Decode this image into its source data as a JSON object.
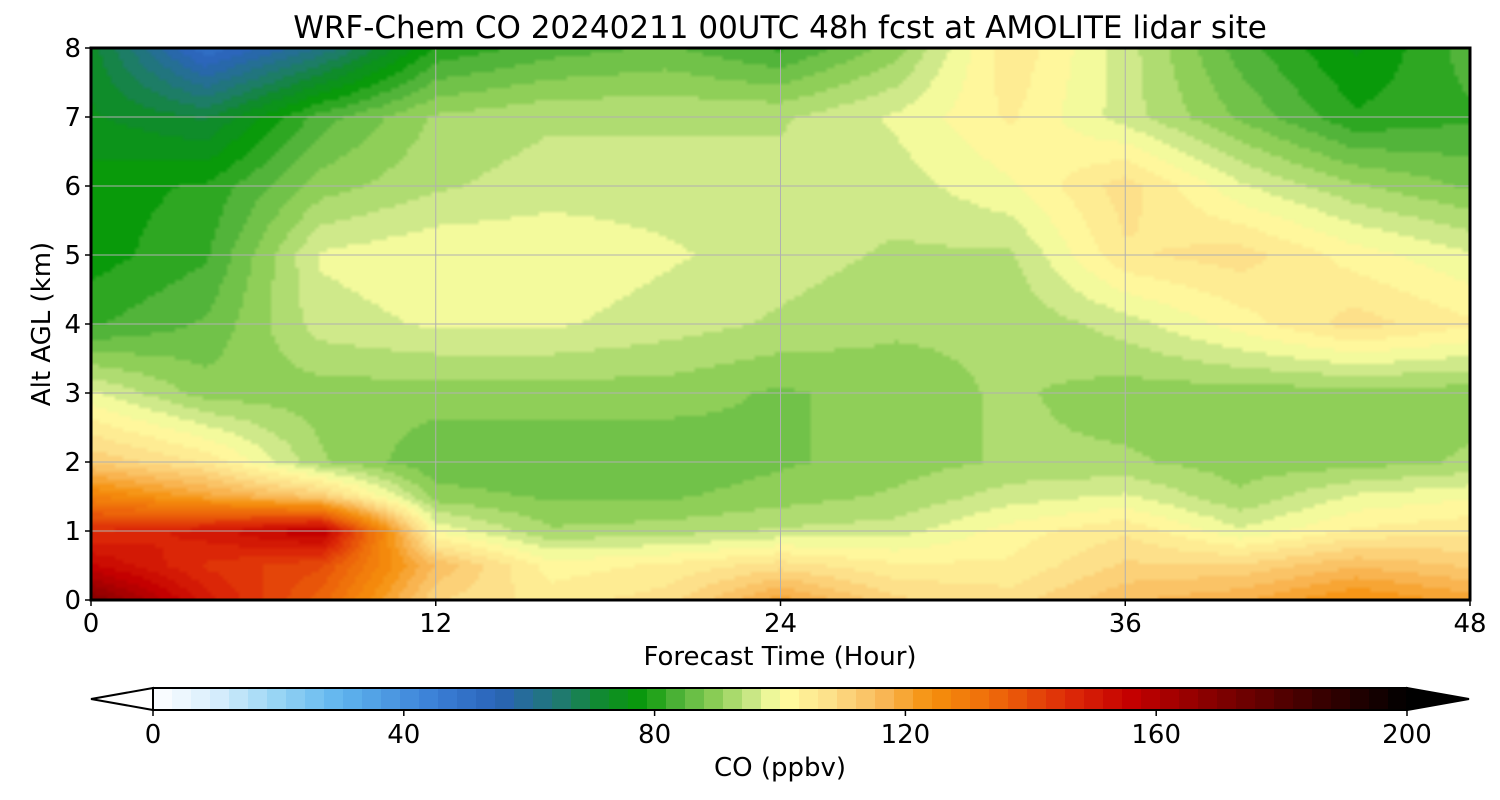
{
  "chart_data": {
    "type": "heatmap",
    "title": "WRF-Chem CO  20240211 00UTC 48h fcst at AMOLITE lidar site",
    "xlabel": "Forecast Time (Hour)",
    "ylabel": "Alt AGL (km)",
    "xlim": [
      0,
      48
    ],
    "ylim": [
      0,
      8
    ],
    "x_ticks": [
      "0",
      "12",
      "24",
      "36",
      "48"
    ],
    "y_ticks": [
      "0",
      "1",
      "2",
      "3",
      "4",
      "5",
      "6",
      "7",
      "8"
    ],
    "grid": true,
    "colorbar": {
      "label": "CO  (ppbv)",
      "range": [
        0,
        200
      ],
      "ticks": [
        "0",
        "40",
        "80",
        "120",
        "160",
        "200"
      ],
      "extend": "both",
      "stops": [
        {
          "value": 0,
          "color": "#ffffff"
        },
        {
          "value": 10,
          "color": "#d8eefc"
        },
        {
          "value": 20,
          "color": "#96d4f4"
        },
        {
          "value": 30,
          "color": "#5fb4ee"
        },
        {
          "value": 45,
          "color": "#3a7fd6"
        },
        {
          "value": 55,
          "color": "#2a63b8"
        },
        {
          "value": 65,
          "color": "#1f7a70"
        },
        {
          "value": 72,
          "color": "#0f8c2a"
        },
        {
          "value": 78,
          "color": "#099a0a"
        },
        {
          "value": 84,
          "color": "#52b43a"
        },
        {
          "value": 90,
          "color": "#8fcf58"
        },
        {
          "value": 96,
          "color": "#cfe98a"
        },
        {
          "value": 100,
          "color": "#ffffa2"
        },
        {
          "value": 108,
          "color": "#fde08a"
        },
        {
          "value": 116,
          "color": "#f9b95a"
        },
        {
          "value": 124,
          "color": "#f5910d"
        },
        {
          "value": 134,
          "color": "#ee6a0a"
        },
        {
          "value": 146,
          "color": "#dd2a08"
        },
        {
          "value": 156,
          "color": "#c40000"
        },
        {
          "value": 168,
          "color": "#8a0000"
        },
        {
          "value": 182,
          "color": "#4a0000"
        },
        {
          "value": 200,
          "color": "#000000"
        }
      ]
    },
    "x": [
      0,
      4,
      8,
      12,
      16,
      20,
      24,
      28,
      32,
      36,
      40,
      44,
      48
    ],
    "y": [
      0,
      0.5,
      1,
      1.5,
      2,
      3,
      4,
      5,
      6,
      7,
      8
    ],
    "z": [
      [
        170,
        150,
        135,
        110,
        105,
        108,
        120,
        110,
        108,
        115,
        118,
        125,
        120
      ],
      [
        155,
        145,
        140,
        115,
        102,
        104,
        108,
        104,
        104,
        110,
        110,
        115,
        112
      ],
      [
        145,
        150,
        158,
        100,
        92,
        93,
        95,
        96,
        102,
        106,
        98,
        104,
        106
      ],
      [
        128,
        120,
        112,
        90,
        88,
        88,
        90,
        92,
        96,
        98,
        92,
        98,
        100
      ],
      [
        112,
        106,
        92,
        86,
        86,
        86,
        88,
        90,
        92,
        92,
        90,
        90,
        92
      ],
      [
        98,
        90,
        90,
        90,
        90,
        90,
        88,
        90,
        92,
        90,
        90,
        90,
        90
      ],
      [
        82,
        86,
        96,
        98,
        98,
        96,
        94,
        92,
        92,
        96,
        102,
        108,
        104
      ],
      [
        78,
        82,
        98,
        100,
        100,
        98,
        96,
        94,
        94,
        106,
        108,
        102,
        98
      ],
      [
        78,
        80,
        90,
        94,
        96,
        96,
        96,
        96,
        100,
        108,
        98,
        92,
        88
      ],
      [
        74,
        70,
        84,
        92,
        94,
        94,
        94,
        98,
        104,
        96,
        88,
        80,
        82
      ],
      [
        72,
        50,
        62,
        80,
        84,
        86,
        82,
        90,
        106,
        96,
        84,
        76,
        84
      ]
    ]
  }
}
